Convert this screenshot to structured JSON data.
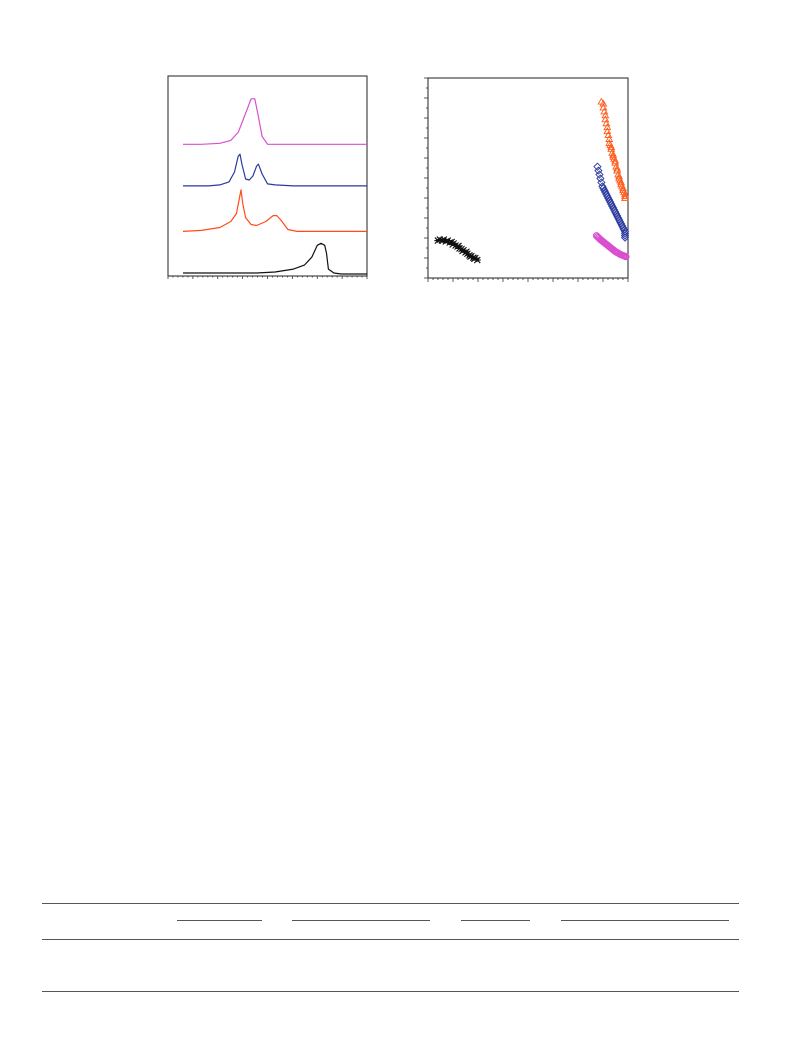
{
  "chart_data": [
    {
      "type": "line",
      "title": "",
      "xlabel": "",
      "ylabel": "",
      "xlim": [
        0,
        100
      ],
      "ylim": [
        0,
        100
      ],
      "grid": false,
      "series": [
        {
          "color": "#d94fd0",
          "points": [
            [
              0,
              66
            ],
            [
              10,
              66
            ],
            [
              20,
              66.5
            ],
            [
              26,
              68
            ],
            [
              30,
              72
            ],
            [
              35,
              84
            ],
            [
              37,
              89
            ],
            [
              39,
              89
            ],
            [
              41,
              80
            ],
            [
              43,
              70
            ],
            [
              46,
              66
            ],
            [
              60,
              66
            ],
            [
              80,
              66
            ],
            [
              100,
              66
            ]
          ]
        },
        {
          "color": "#2b3a9e",
          "points": [
            [
              0,
              45
            ],
            [
              14,
              45
            ],
            [
              20,
              45.5
            ],
            [
              25,
              47
            ],
            [
              28,
              52
            ],
            [
              30,
              60
            ],
            [
              31,
              61
            ],
            [
              32,
              56
            ],
            [
              34,
              48.5
            ],
            [
              36,
              48
            ],
            [
              38,
              50
            ],
            [
              40,
              55
            ],
            [
              41,
              56
            ],
            [
              43,
              51
            ],
            [
              46,
              46
            ],
            [
              50,
              45.5
            ],
            [
              60,
              45
            ],
            [
              80,
              45
            ],
            [
              100,
              45
            ]
          ]
        },
        {
          "color": "#ff4a1a",
          "points": [
            [
              0,
              22
            ],
            [
              10,
              22.5
            ],
            [
              20,
              24
            ],
            [
              26,
              27
            ],
            [
              29,
              31
            ],
            [
              30.5,
              38
            ],
            [
              31.5,
              43
            ],
            [
              32.5,
              36
            ],
            [
              34,
              29
            ],
            [
              37,
              25.5
            ],
            [
              40,
              25
            ],
            [
              45,
              27
            ],
            [
              49,
              30
            ],
            [
              51,
              30
            ],
            [
              53,
              28
            ],
            [
              57,
              23
            ],
            [
              62,
              22
            ],
            [
              80,
              22
            ],
            [
              100,
              22
            ]
          ]
        },
        {
          "color": "#111111",
          "points": [
            [
              0,
              1
            ],
            [
              40,
              1
            ],
            [
              50,
              1.5
            ],
            [
              60,
              3
            ],
            [
              66,
              5
            ],
            [
              70,
              9
            ],
            [
              73,
              15
            ],
            [
              75,
              16
            ],
            [
              77,
              15
            ],
            [
              78,
              11
            ],
            [
              79,
              3
            ],
            [
              82,
              1
            ],
            [
              86,
              0.5
            ],
            [
              100,
              0.5
            ]
          ]
        }
      ]
    },
    {
      "type": "scatter",
      "title": "",
      "xlabel": "",
      "ylabel": "",
      "xlim": [
        0,
        100
      ],
      "ylim": [
        0,
        100
      ],
      "grid": false,
      "series": [
        {
          "marker": "triangle-open",
          "color": "#ff5a1a",
          "points": [
            [
              87,
              89
            ],
            [
              88,
              88
            ],
            [
              88,
              86
            ],
            [
              88.5,
              84
            ],
            [
              89,
              82
            ],
            [
              89,
              80
            ],
            [
              89.5,
              78
            ],
            [
              90,
              76
            ],
            [
              90,
              74
            ],
            [
              90.5,
              72
            ],
            [
              91,
              70
            ],
            [
              91,
              68
            ],
            [
              91.5,
              67
            ],
            [
              92,
              66
            ],
            [
              92,
              65
            ],
            [
              92.5,
              63
            ],
            [
              93,
              62
            ],
            [
              93,
              61
            ],
            [
              93.5,
              60
            ],
            [
              94,
              59
            ],
            [
              94,
              58
            ],
            [
              94.5,
              56
            ],
            [
              95,
              55
            ],
            [
              95,
              54
            ],
            [
              95.5,
              52
            ],
            [
              96,
              51
            ],
            [
              96,
              50
            ],
            [
              96.5,
              49
            ],
            [
              97,
              48
            ],
            [
              97,
              47
            ],
            [
              97.5,
              46
            ],
            [
              98,
              45
            ],
            [
              98,
              44
            ],
            [
              98.5,
              43
            ],
            [
              99,
              42
            ],
            [
              99,
              41
            ],
            [
              99,
              40
            ]
          ]
        },
        {
          "marker": "diamond-open",
          "color": "#2b3a9e",
          "points": [
            [
              85,
              56
            ],
            [
              85.5,
              54
            ],
            [
              86,
              52
            ],
            [
              86.5,
              50
            ],
            [
              87,
              48
            ],
            [
              87.5,
              46
            ],
            [
              88,
              45
            ],
            [
              88.5,
              44
            ],
            [
              89,
              43
            ],
            [
              89.5,
              42
            ],
            [
              90,
              41
            ],
            [
              90.5,
              40
            ],
            [
              91,
              39
            ],
            [
              91.5,
              38
            ],
            [
              92,
              37
            ],
            [
              92.5,
              36
            ],
            [
              93,
              35
            ],
            [
              93.5,
              34
            ],
            [
              94,
              33
            ],
            [
              94.5,
              32
            ],
            [
              95,
              31
            ],
            [
              95.5,
              30
            ],
            [
              96,
              29
            ],
            [
              96.5,
              28
            ],
            [
              97,
              27
            ],
            [
              97.5,
              26
            ],
            [
              98,
              25
            ],
            [
              98.5,
              24
            ],
            [
              99,
              23
            ],
            [
              99,
              22
            ],
            [
              99,
              21
            ],
            [
              99,
              20
            ]
          ]
        },
        {
          "marker": "circle-open",
          "color": "#d94fd0",
          "points": [
            [
              84.5,
              21
            ],
            [
              85,
              20.5
            ],
            [
              85.5,
              20
            ],
            [
              86,
              19.5
            ],
            [
              86.5,
              19
            ],
            [
              87,
              18.6
            ],
            [
              87.5,
              18.2
            ],
            [
              88,
              17.8
            ],
            [
              88.5,
              17.4
            ],
            [
              89,
              17
            ],
            [
              89.5,
              16.6
            ],
            [
              90,
              16.2
            ],
            [
              90.5,
              15.8
            ],
            [
              91,
              15.4
            ],
            [
              91.5,
              15
            ],
            [
              92,
              14.6
            ],
            [
              92.5,
              14.2
            ],
            [
              93,
              13.8
            ],
            [
              93.5,
              13.4
            ],
            [
              94,
              13
            ],
            [
              94.5,
              12.7
            ],
            [
              95,
              12.4
            ],
            [
              95.5,
              12.1
            ],
            [
              96,
              11.8
            ],
            [
              96.5,
              11.5
            ],
            [
              97,
              11.3
            ],
            [
              97.5,
              11.1
            ],
            [
              98,
              10.9
            ],
            [
              98.5,
              10.7
            ],
            [
              99,
              10.5
            ],
            [
              99.5,
              10.3
            ]
          ]
        },
        {
          "marker": "cross",
          "color": "#111111",
          "points": [
            [
              4,
              18.5
            ],
            [
              5,
              19
            ],
            [
              6,
              18.5
            ],
            [
              7,
              19
            ],
            [
              8,
              18
            ],
            [
              9,
              18.5
            ],
            [
              10,
              17.5
            ],
            [
              11,
              17.8
            ],
            [
              11.5,
              16.5
            ],
            [
              12,
              17
            ],
            [
              13,
              16
            ],
            [
              14,
              15.5
            ],
            [
              14.5,
              15.8
            ],
            [
              15,
              14.5
            ],
            [
              16,
              14.2
            ],
            [
              16.5,
              13.2
            ],
            [
              17,
              13.6
            ],
            [
              18,
              12.5
            ],
            [
              18.5,
              12.8
            ],
            [
              19,
              11.8
            ],
            [
              20,
              11
            ],
            [
              20.5,
              10.4
            ],
            [
              21,
              10.6
            ],
            [
              22,
              9.8
            ],
            [
              22.5,
              9.3
            ],
            [
              23,
              9.6
            ],
            [
              24,
              8.6
            ]
          ]
        }
      ]
    }
  ]
}
